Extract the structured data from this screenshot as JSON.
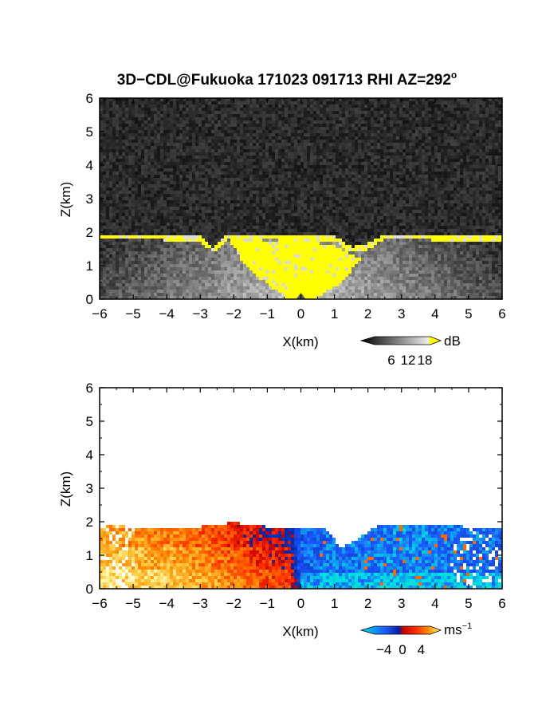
{
  "title": {
    "main": "3D−CDL@Fukuoka 171023 091713 RHI AZ=292",
    "degree": "o"
  },
  "colors": {
    "yellow": "#ffff00",
    "background_noise": "#222222",
    "wind_negative": "#1e5aff",
    "wind_cyan": "#00e0e0",
    "wind_positive": "#ff3000",
    "wind_orange": "#ff9000",
    "wind_light": "#ffe070"
  },
  "chart_data": [
    {
      "type": "heatmap",
      "panel": "signal",
      "xlabel": "X(km)",
      "ylabel": "Z(km)",
      "xlim": [
        -6,
        6
      ],
      "ylim": [
        0,
        6
      ],
      "x_ticks": [
        "−6",
        "−5",
        "−4",
        "−3",
        "−2",
        "−1",
        "0",
        "1",
        "2",
        "3",
        "4",
        "5",
        "6"
      ],
      "y_ticks": [
        "0",
        "1",
        "2",
        "3",
        "4",
        "5",
        "6"
      ],
      "colorbar": {
        "unit": "dB",
        "ticks": [
          "6",
          "12",
          "18"
        ],
        "range": [
          0,
          20
        ]
      },
      "data_top_profile": [
        [
          -6,
          1.9
        ],
        [
          -5,
          1.9
        ],
        [
          -4,
          1.88
        ],
        [
          -3,
          1.82
        ],
        [
          -2.6,
          1.5
        ],
        [
          -2.2,
          1.9
        ],
        [
          -1,
          1.9
        ],
        [
          0,
          1.85
        ],
        [
          1,
          1.85
        ],
        [
          1.5,
          1.5
        ],
        [
          2,
          1.6
        ],
        [
          2.5,
          1.9
        ],
        [
          4,
          1.88
        ],
        [
          5,
          1.82
        ],
        [
          6,
          1.85
        ]
      ],
      "saturated_cone_profile": [
        [
          -2.2,
          1.9
        ],
        [
          -1.5,
          1.9
        ],
        [
          -1,
          1.7
        ],
        [
          0,
          1.75
        ],
        [
          1,
          1.6
        ],
        [
          1.8,
          1.2
        ],
        [
          1.2,
          0.5
        ],
        [
          0.4,
          0.0
        ],
        [
          -0.4,
          0.0
        ],
        [
          -1.2,
          0.6
        ],
        [
          -1.8,
          1.2
        ]
      ]
    },
    {
      "type": "heatmap",
      "panel": "radial-velocity",
      "xlabel": "X(km)",
      "ylabel": "Z(km)",
      "xlim": [
        -6,
        6
      ],
      "ylim": [
        0,
        6
      ],
      "x_ticks": [
        "−6",
        "−5",
        "−4",
        "−3",
        "−2",
        "−1",
        "0",
        "1",
        "2",
        "3",
        "4",
        "5",
        "6"
      ],
      "y_ticks": [
        "0",
        "1",
        "2",
        "3",
        "4",
        "5",
        "6"
      ],
      "colorbar": {
        "unit": "ms",
        "unit_exponent": "−1",
        "ticks": [
          "−4",
          "0",
          "4"
        ],
        "range": [
          -6,
          6
        ]
      },
      "velocity_by_x": [
        [
          -6,
          4.5
        ],
        [
          -5,
          4.2
        ],
        [
          -4,
          3.8
        ],
        [
          -3,
          3.2
        ],
        [
          -2,
          2.2
        ],
        [
          -1,
          1.2
        ],
        [
          -0.3,
          0.6
        ],
        [
          0,
          -3.5
        ],
        [
          1,
          -4.2
        ],
        [
          2,
          -4.0
        ],
        [
          3,
          -4.5
        ],
        [
          4,
          -4.2
        ],
        [
          5,
          -4.0
        ],
        [
          6,
          -3.8
        ]
      ],
      "data_top_profile": [
        [
          -6,
          1.88
        ],
        [
          -5,
          1.85
        ],
        [
          -4,
          1.8
        ],
        [
          -3,
          1.85
        ],
        [
          -2,
          1.98
        ],
        [
          -1,
          1.85
        ],
        [
          0,
          1.85
        ],
        [
          0.7,
          1.8
        ],
        [
          1.2,
          1.25
        ],
        [
          1.7,
          1.5
        ],
        [
          2.2,
          1.85
        ],
        [
          3,
          1.9
        ],
        [
          4,
          1.9
        ],
        [
          5,
          1.85
        ],
        [
          6,
          1.85
        ]
      ]
    }
  ]
}
